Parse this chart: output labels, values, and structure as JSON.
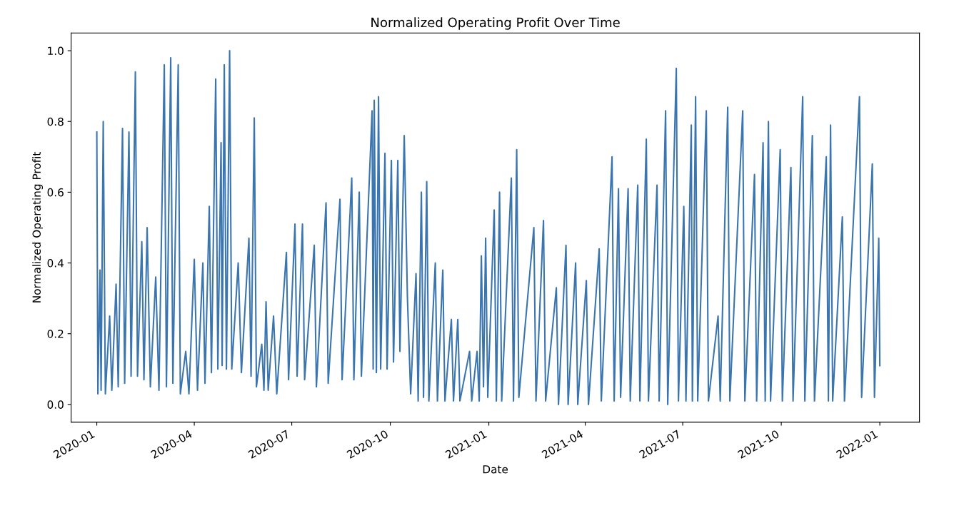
{
  "chart_data": {
    "type": "line",
    "title": "Normalized Operating Profit Over Time",
    "xlabel": "Date",
    "ylabel": "Normalized Operating Profit",
    "x": [
      "2020-01-01",
      "2020-01-02",
      "2020-01-04",
      "2020-01-05",
      "2020-01-07",
      "2020-01-09",
      "2020-01-13",
      "2020-01-15",
      "2020-01-19",
      "2020-01-21",
      "2020-01-25",
      "2020-01-27",
      "2020-01-31",
      "2020-02-02",
      "2020-02-06",
      "2020-02-08",
      "2020-02-12",
      "2020-02-14",
      "2020-02-17",
      "2020-02-20",
      "2020-02-25",
      "2020-02-28",
      "2020-03-04",
      "2020-03-06",
      "2020-03-10",
      "2020-03-12",
      "2020-03-17",
      "2020-03-19",
      "2020-03-24",
      "2020-03-27",
      "2020-04-01",
      "2020-04-04",
      "2020-04-09",
      "2020-04-11",
      "2020-04-15",
      "2020-04-17",
      "2020-04-21",
      "2020-04-23",
      "2020-04-26",
      "2020-04-27",
      "2020-04-29",
      "2020-05-01",
      "2020-05-04",
      "2020-05-06",
      "2020-05-12",
      "2020-05-15",
      "2020-05-22",
      "2020-05-24",
      "2020-05-27",
      "2020-05-29",
      "2020-06-03",
      "2020-06-05",
      "2020-06-07",
      "2020-06-09",
      "2020-06-14",
      "2020-06-17",
      "2020-06-26",
      "2020-06-28",
      "2020-07-04",
      "2020-07-06",
      "2020-07-11",
      "2020-07-13",
      "2020-07-22",
      "2020-07-24",
      "2020-08-02",
      "2020-08-04",
      "2020-08-15",
      "2020-08-17",
      "2020-08-26",
      "2020-08-28",
      "2020-09-02",
      "2020-09-04",
      "2020-09-14",
      "2020-09-15",
      "2020-09-16",
      "2020-09-18",
      "2020-09-20",
      "2020-09-22",
      "2020-09-26",
      "2020-09-28",
      "2020-10-02",
      "2020-10-04",
      "2020-10-08",
      "2020-10-10",
      "2020-10-14",
      "2020-10-17",
      "2020-10-20",
      "2020-10-25",
      "2020-10-27",
      "2020-10-30",
      "2020-11-01",
      "2020-11-04",
      "2020-11-06",
      "2020-11-12",
      "2020-11-14",
      "2020-11-19",
      "2020-11-21",
      "2020-11-27",
      "2020-11-29",
      "2020-12-03",
      "2020-12-05",
      "2020-12-14",
      "2020-12-16",
      "2020-12-21",
      "2020-12-23",
      "2020-12-25",
      "2020-12-27",
      "2020-12-29",
      "2020-12-31",
      "2021-01-06",
      "2021-01-08",
      "2021-01-11",
      "2021-01-13",
      "2021-01-22",
      "2021-01-24",
      "2021-01-27",
      "2021-01-29",
      "2021-02-12",
      "2021-02-14",
      "2021-02-21",
      "2021-02-23",
      "2021-03-05",
      "2021-03-07",
      "2021-03-14",
      "2021-03-16",
      "2021-03-23",
      "2021-03-25",
      "2021-04-02",
      "2021-04-04",
      "2021-04-14",
      "2021-04-16",
      "2021-04-26",
      "2021-04-28",
      "2021-05-02",
      "2021-05-04",
      "2021-05-11",
      "2021-05-13",
      "2021-05-20",
      "2021-05-22",
      "2021-05-28",
      "2021-05-30",
      "2021-06-07",
      "2021-06-09",
      "2021-06-15",
      "2021-06-17",
      "2021-06-25",
      "2021-06-27",
      "2021-07-02",
      "2021-07-04",
      "2021-07-09",
      "2021-07-10",
      "2021-07-13",
      "2021-07-15",
      "2021-07-23",
      "2021-07-25",
      "2021-08-03",
      "2021-08-05",
      "2021-08-12",
      "2021-08-14",
      "2021-08-26",
      "2021-08-28",
      "2021-09-06",
      "2021-09-08",
      "2021-09-14",
      "2021-09-16",
      "2021-09-19",
      "2021-09-21",
      "2021-09-30",
      "2021-10-02",
      "2021-10-10",
      "2021-10-12",
      "2021-10-21",
      "2021-10-23",
      "2021-10-30",
      "2021-11-01",
      "2021-11-12",
      "2021-11-14",
      "2021-11-16",
      "2021-11-18",
      "2021-11-27",
      "2021-11-29",
      "2021-12-13",
      "2021-12-15",
      "2021-12-25",
      "2021-12-27",
      "2021-12-31",
      "2022-01-01"
    ],
    "series": [
      {
        "color": "#3b75af",
        "values": [
          0.77,
          0.03,
          0.38,
          0.04,
          0.8,
          0.03,
          0.25,
          0.04,
          0.34,
          0.05,
          0.78,
          0.06,
          0.77,
          0.08,
          0.94,
          0.08,
          0.46,
          0.07,
          0.5,
          0.05,
          0.36,
          0.04,
          0.96,
          0.05,
          0.98,
          0.06,
          0.96,
          0.03,
          0.15,
          0.03,
          0.41,
          0.04,
          0.4,
          0.06,
          0.56,
          0.09,
          0.92,
          0.1,
          0.74,
          0.11,
          0.96,
          0.1,
          1.0,
          0.1,
          0.4,
          0.09,
          0.47,
          0.08,
          0.81,
          0.05,
          0.17,
          0.04,
          0.29,
          0.04,
          0.25,
          0.03,
          0.43,
          0.07,
          0.51,
          0.08,
          0.51,
          0.07,
          0.45,
          0.05,
          0.57,
          0.06,
          0.58,
          0.07,
          0.64,
          0.07,
          0.6,
          0.08,
          0.83,
          0.1,
          0.86,
          0.09,
          0.87,
          0.1,
          0.71,
          0.1,
          0.69,
          0.12,
          0.69,
          0.15,
          0.76,
          0.3,
          0.03,
          0.37,
          0.01,
          0.6,
          0.02,
          0.63,
          0.01,
          0.4,
          0.01,
          0.38,
          0.01,
          0.24,
          0.01,
          0.24,
          0.01,
          0.15,
          0.01,
          0.15,
          0.01,
          0.42,
          0.05,
          0.47,
          0.02,
          0.55,
          0.01,
          0.6,
          0.01,
          0.64,
          0.01,
          0.72,
          0.02,
          0.5,
          0.01,
          0.52,
          0.01,
          0.33,
          0.0,
          0.45,
          0.0,
          0.4,
          0.0,
          0.35,
          0.0,
          0.44,
          0.01,
          0.7,
          0.01,
          0.61,
          0.02,
          0.61,
          0.01,
          0.62,
          0.01,
          0.75,
          0.01,
          0.62,
          0.01,
          0.83,
          0.0,
          0.95,
          0.01,
          0.56,
          0.01,
          0.79,
          0.01,
          0.87,
          0.01,
          0.83,
          0.01,
          0.25,
          0.01,
          0.84,
          0.01,
          0.83,
          0.01,
          0.65,
          0.01,
          0.74,
          0.01,
          0.8,
          0.01,
          0.72,
          0.01,
          0.67,
          0.01,
          0.87,
          0.01,
          0.76,
          0.01,
          0.7,
          0.01,
          0.79,
          0.01,
          0.53,
          0.01,
          0.87,
          0.02,
          0.68,
          0.02,
          0.47,
          0.11
        ]
      }
    ],
    "xlim": [
      "2019-12-08",
      "2022-02-07"
    ],
    "xticks": [
      "2020-01",
      "2020-04",
      "2020-07",
      "2020-10",
      "2021-01",
      "2021-04",
      "2021-07",
      "2021-10",
      "2022-01"
    ],
    "ylim": [
      -0.05,
      1.05
    ],
    "yticks": [
      {
        "value": 0,
        "label": "0.0"
      },
      {
        "value": 0.2,
        "label": "0.2"
      },
      {
        "value": 0.4,
        "label": "0.4"
      },
      {
        "value": 0.6,
        "label": "0.6"
      },
      {
        "value": 0.8,
        "label": "0.8"
      },
      {
        "value": 1,
        "label": "1.0"
      }
    ],
    "grid": false,
    "marker": "none",
    "line_style": "solid"
  }
}
